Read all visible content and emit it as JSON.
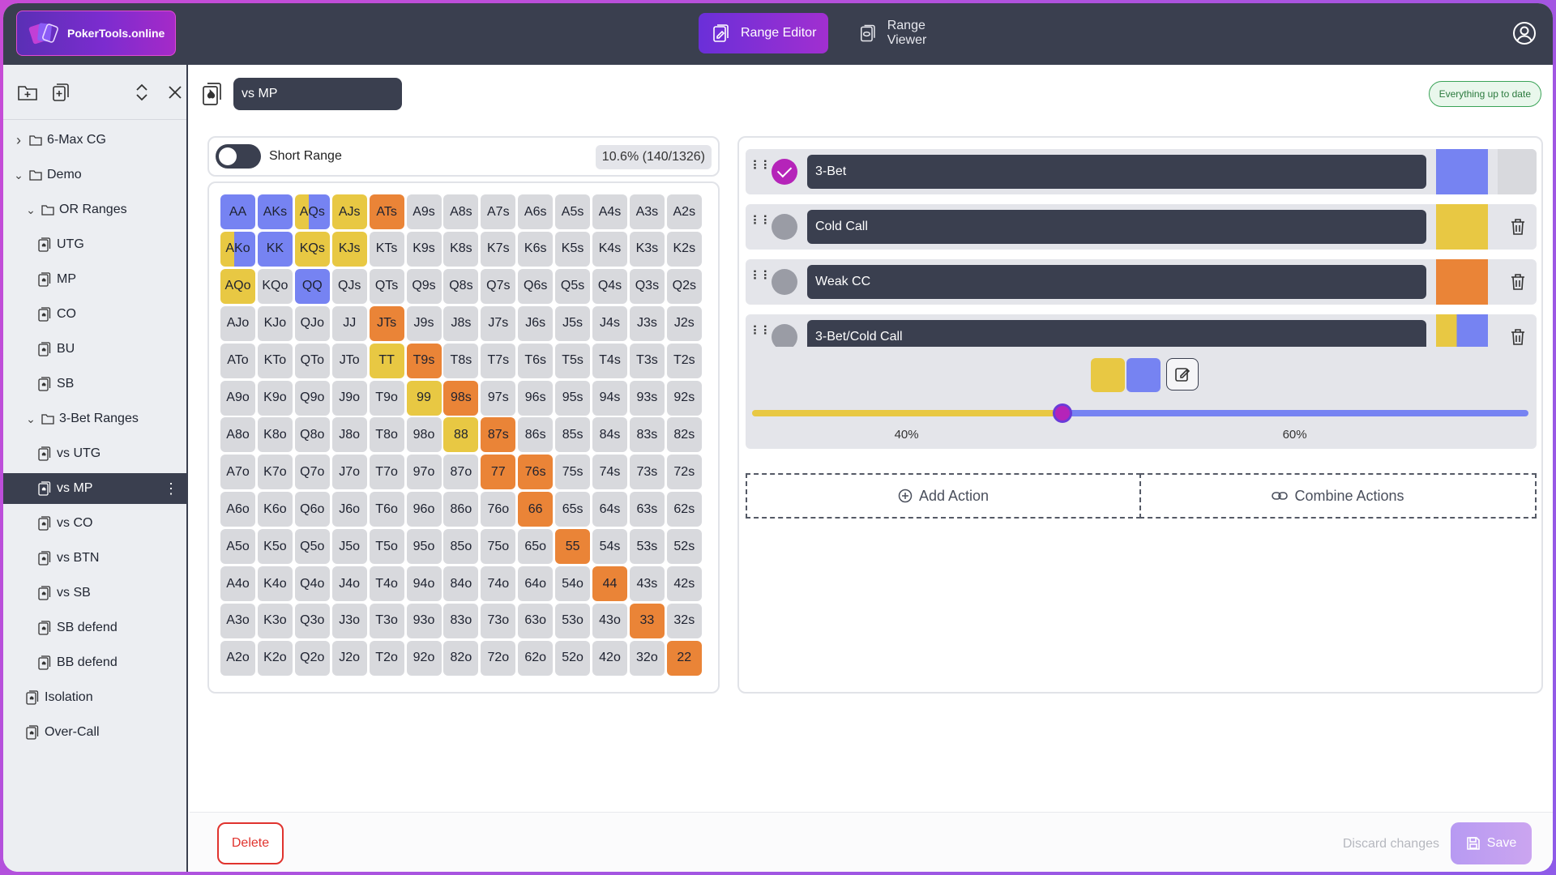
{
  "colors": {
    "three_bet": "#7683f2",
    "cold_call": "#e8c843",
    "weak_cc": "#ea8437",
    "cell_default": "#d8d9dd"
  },
  "app": {
    "brand": "PokerTools.online"
  },
  "nav": {
    "tabs": [
      {
        "label": "Range Editor",
        "icon": "range-editor-icon",
        "active": true
      },
      {
        "label": "Range Viewer",
        "icon": "range-viewer-icon",
        "active": false
      }
    ]
  },
  "sidebar": {
    "tools": [
      "new-folder-icon",
      "new-range-icon",
      "expand-collapse-icon",
      "close-icon"
    ],
    "tree": [
      {
        "label": "6-Max CG",
        "type": "folder",
        "level": 0,
        "expanded": false
      },
      {
        "label": "Demo",
        "type": "folder",
        "level": 0,
        "expanded": true
      },
      {
        "label": "OR Ranges",
        "type": "folder",
        "level": 1,
        "expanded": true
      },
      {
        "label": "UTG",
        "type": "range",
        "level": 2
      },
      {
        "label": "MP",
        "type": "range",
        "level": 2
      },
      {
        "label": "CO",
        "type": "range",
        "level": 2
      },
      {
        "label": "BU",
        "type": "range",
        "level": 2
      },
      {
        "label": "SB",
        "type": "range",
        "level": 2
      },
      {
        "label": "3-Bet Ranges",
        "type": "folder",
        "level": 1,
        "expanded": true
      },
      {
        "label": "vs UTG",
        "type": "range",
        "level": 2
      },
      {
        "label": "vs MP",
        "type": "range",
        "level": 2,
        "selected": true
      },
      {
        "label": "vs CO",
        "type": "range",
        "level": 2
      },
      {
        "label": "vs BTN",
        "type": "range",
        "level": 2
      },
      {
        "label": "vs SB",
        "type": "range",
        "level": 2
      },
      {
        "label": "SB defend",
        "type": "range",
        "level": 2
      },
      {
        "label": "BB defend",
        "type": "range",
        "level": 2
      },
      {
        "label": "Isolation",
        "type": "range",
        "level": 1
      },
      {
        "label": "Over-Call",
        "type": "range",
        "level": 1
      }
    ]
  },
  "editor": {
    "range_name": "vs MP",
    "status": "Everything up to date",
    "short_range_label": "Short Range",
    "short_range_on": false,
    "combo_stats": "10.6% (140/1326)",
    "ranks": [
      "A",
      "K",
      "Q",
      "J",
      "T",
      "9",
      "8",
      "7",
      "6",
      "5",
      "4",
      "3",
      "2"
    ],
    "assignments": {
      "AA": [
        [
          "three_bet",
          1
        ]
      ],
      "AKs": [
        [
          "three_bet",
          1
        ]
      ],
      "AQs": [
        [
          "cold_call",
          0.4
        ],
        [
          "three_bet",
          0.6
        ]
      ],
      "AJs": [
        [
          "cold_call",
          1
        ]
      ],
      "ATs": [
        [
          "weak_cc",
          1
        ]
      ],
      "AKo": [
        [
          "cold_call",
          0.4
        ],
        [
          "three_bet",
          0.6
        ]
      ],
      "KK": [
        [
          "three_bet",
          1
        ]
      ],
      "KQs": [
        [
          "cold_call",
          1
        ]
      ],
      "KJs": [
        [
          "cold_call",
          1
        ]
      ],
      "AQo": [
        [
          "cold_call",
          1
        ]
      ],
      "QQ": [
        [
          "three_bet",
          1
        ]
      ],
      "JTs": [
        [
          "weak_cc",
          1
        ]
      ],
      "TT": [
        [
          "cold_call",
          1
        ]
      ],
      "T9s": [
        [
          "weak_cc",
          1
        ]
      ],
      "99": [
        [
          "cold_call",
          1
        ]
      ],
      "98s": [
        [
          "weak_cc",
          1
        ]
      ],
      "88": [
        [
          "cold_call",
          1
        ]
      ],
      "87s": [
        [
          "weak_cc",
          1
        ]
      ],
      "77": [
        [
          "weak_cc",
          1
        ]
      ],
      "76s": [
        [
          "weak_cc",
          1
        ]
      ],
      "66": [
        [
          "weak_cc",
          1
        ]
      ],
      "55": [
        [
          "weak_cc",
          1
        ]
      ],
      "44": [
        [
          "weak_cc",
          1
        ]
      ],
      "33": [
        [
          "weak_cc",
          1
        ]
      ],
      "22": [
        [
          "weak_cc",
          1
        ]
      ]
    }
  },
  "actions": [
    {
      "label": "3-Bet",
      "selected": true,
      "colors": [
        "three_bet"
      ],
      "deletable": false
    },
    {
      "label": "Cold Call",
      "selected": false,
      "colors": [
        "cold_call"
      ],
      "deletable": true
    },
    {
      "label": "Weak CC",
      "selected": false,
      "colors": [
        "weak_cc"
      ],
      "deletable": true
    },
    {
      "label": "3-Bet/Cold Call",
      "selected": false,
      "colors": [
        "cold_call",
        "three_bet"
      ],
      "deletable": true
    }
  ],
  "combo": {
    "split": 0.4,
    "left_label": "40%",
    "right_label": "60%"
  },
  "buttons": {
    "add_action": "Add Action",
    "combine_actions": "Combine Actions",
    "delete": "Delete",
    "discard": "Discard changes",
    "save": "Save"
  }
}
